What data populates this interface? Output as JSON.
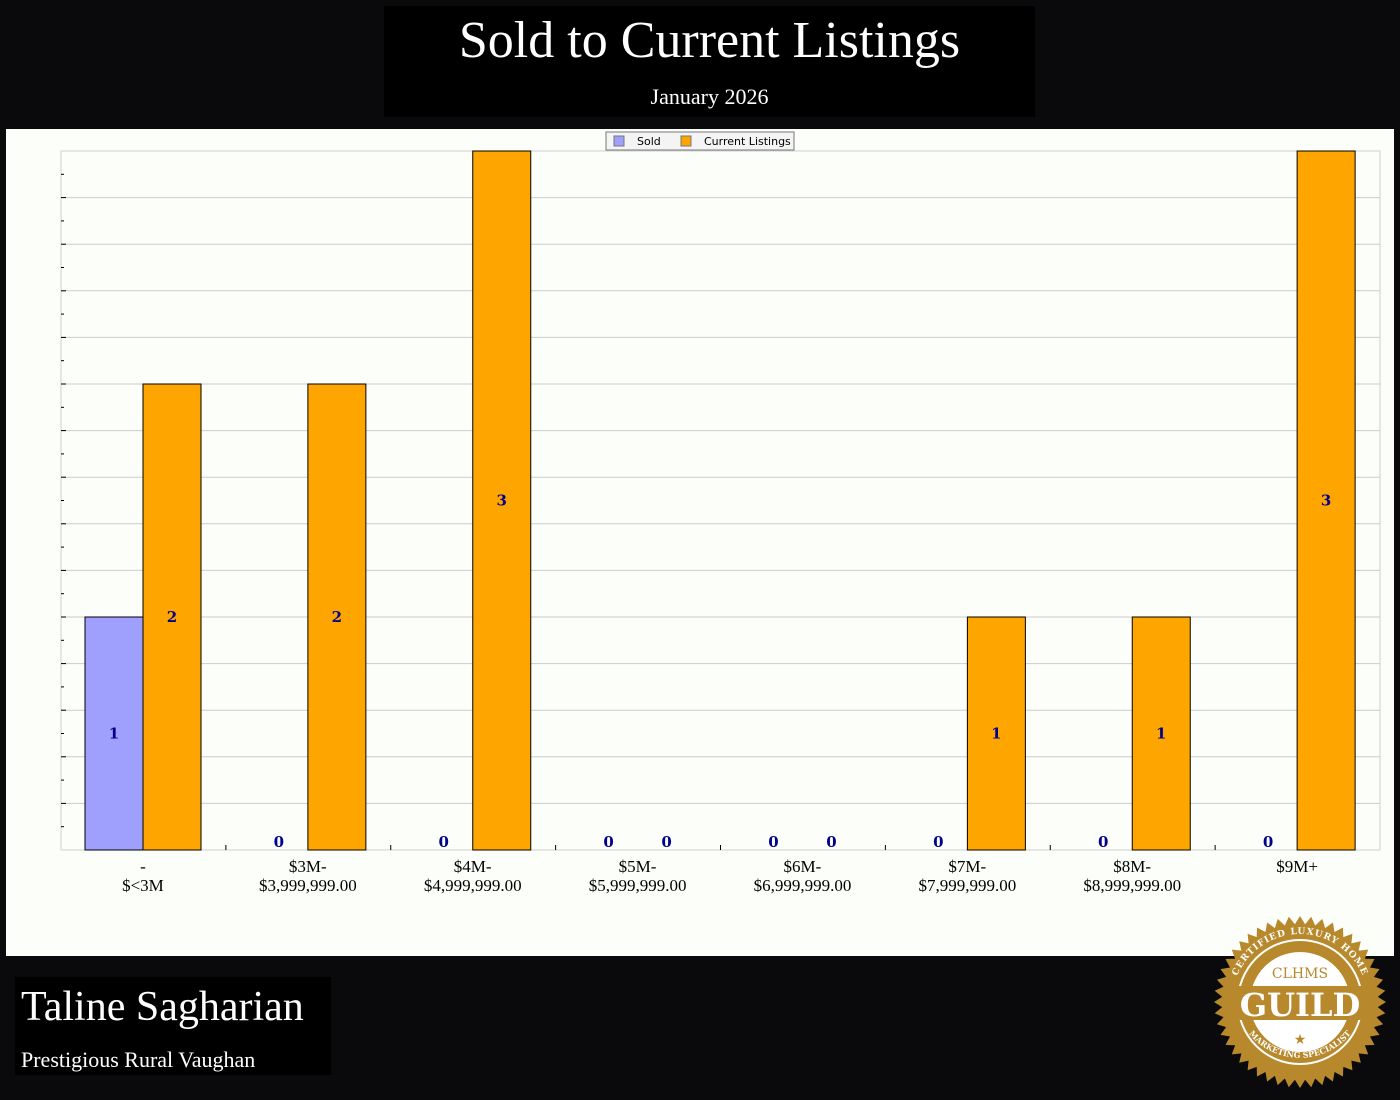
{
  "header": {
    "title": "Sold to Current Listings",
    "subtitle": "January 2026"
  },
  "footer": {
    "agent_name": "Taline Sagharian",
    "area": "Prestigious Rural Vaughan",
    "logo": {
      "top_text": "CERTIFIED LUXURY HOME",
      "brand": "CLHMS",
      "main": "GUILD",
      "bottom_text": "MARKETING SPECIALIST"
    }
  },
  "colors": {
    "sold": "#9f9ffe",
    "current": "#ffa500",
    "label": "#00008b",
    "grid": "#cccccc",
    "gold": "#b8892c"
  },
  "chart_data": {
    "type": "bar",
    "categories": [
      [
        "-",
        "$<3M"
      ],
      [
        "$3M-",
        "$3,999,999.00"
      ],
      [
        "$4M-",
        "$4,999,999.00"
      ],
      [
        "$5M-",
        "$5,999,999.00"
      ],
      [
        "$6M-",
        "$6,999,999.00"
      ],
      [
        "$7M-",
        "$7,999,999.00"
      ],
      [
        "$8M-",
        "$8,999,999.00"
      ],
      [
        "$9M+",
        ""
      ]
    ],
    "series": [
      {
        "name": "Sold",
        "values": [
          1,
          0,
          0,
          0,
          0,
          0,
          0,
          0
        ]
      },
      {
        "name": "Current Listings",
        "values": [
          2,
          2,
          3,
          0,
          0,
          1,
          1,
          3
        ]
      }
    ],
    "ylim": [
      0,
      3
    ],
    "grid": true,
    "legend": "top-center",
    "data_labels": true
  }
}
